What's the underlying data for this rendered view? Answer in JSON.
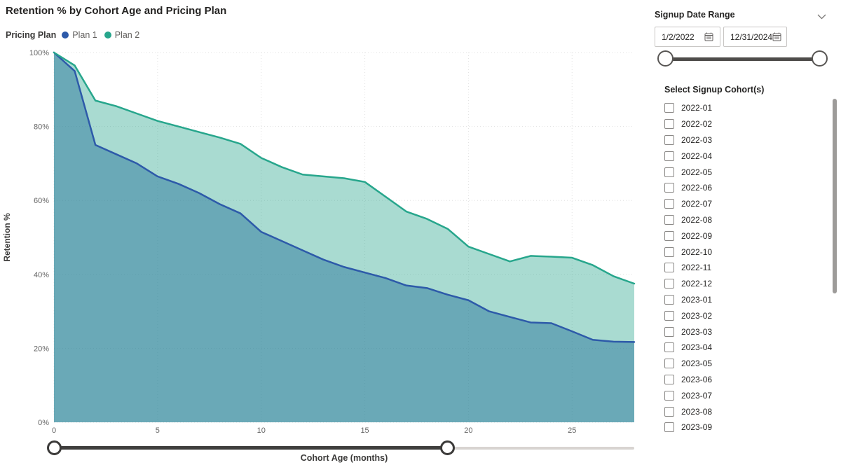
{
  "chart": {
    "title": "Retention % by Cohort Age and Pricing Plan",
    "legend": {
      "title": "Pricing Plan",
      "items": [
        {
          "label": "Plan 1",
          "color": "#2D5AA9"
        },
        {
          "label": "Plan 2",
          "color": "#27A68C"
        }
      ]
    }
  },
  "chart_data": {
    "type": "area",
    "title": "Retention % by Cohort Age and Pricing Plan",
    "xlabel": "Cohort Age (months)",
    "ylabel": "Retention %",
    "xlim": [
      0,
      28
    ],
    "ylim": [
      0,
      100
    ],
    "grid": true,
    "legend_position": "top-left",
    "x": [
      0,
      1,
      2,
      3,
      4,
      5,
      6,
      7,
      8,
      9,
      10,
      11,
      12,
      13,
      14,
      15,
      16,
      17,
      18,
      19,
      20,
      21,
      22,
      23,
      24,
      25,
      26,
      27,
      28
    ],
    "x_ticks": [
      0,
      5,
      10,
      15,
      20,
      25
    ],
    "y_ticks": [
      {
        "label": "0%",
        "value": 0
      },
      {
        "label": "20%",
        "value": 20
      },
      {
        "label": "40%",
        "value": 40
      },
      {
        "label": "60%",
        "value": 60
      },
      {
        "label": "80%",
        "value": 80
      },
      {
        "label": "100%",
        "value": 100
      }
    ],
    "series": [
      {
        "name": "Plan 1",
        "color": "#2D5AA9",
        "fill_opacity": 0.5,
        "values": [
          100,
          95,
          75,
          72.5,
          70,
          66.5,
          64.5,
          62,
          59,
          56.5,
          51.5,
          49,
          46.5,
          44,
          42,
          40.5,
          39,
          37,
          36.3,
          34.5,
          33,
          30,
          28.5,
          27,
          26.8,
          24.6,
          22.3,
          21.8,
          21.7
        ]
      },
      {
        "name": "Plan 2",
        "color": "#27A68C",
        "fill_opacity": 0.4,
        "values": [
          100,
          96.5,
          87,
          85.5,
          83.5,
          81.5,
          80,
          78.5,
          77,
          75.3,
          71.5,
          69,
          67,
          66.5,
          66,
          65,
          61,
          57,
          55,
          52.3,
          47.5,
          45.5,
          43.5,
          45,
          44.8,
          44.5,
          42.5,
          39.5,
          37.5
        ]
      }
    ]
  },
  "cohort_age_slider": {
    "track_min": 0,
    "track_max": 28,
    "selected_min": 0,
    "selected_max": 19
  },
  "date_slicer": {
    "title": "Signup Date Range",
    "start_value": "1/2/2022",
    "end_value": "12/31/2024"
  },
  "cohort_list": {
    "title": "Select Signup Cohort(s)",
    "checked": false,
    "items": [
      "2022-01",
      "2022-02",
      "2022-03",
      "2022-04",
      "2022-05",
      "2022-06",
      "2022-07",
      "2022-08",
      "2022-09",
      "2022-10",
      "2022-11",
      "2022-12",
      "2023-01",
      "2023-02",
      "2023-03",
      "2023-04",
      "2023-05",
      "2023-06",
      "2023-07",
      "2023-08",
      "2023-09"
    ]
  }
}
